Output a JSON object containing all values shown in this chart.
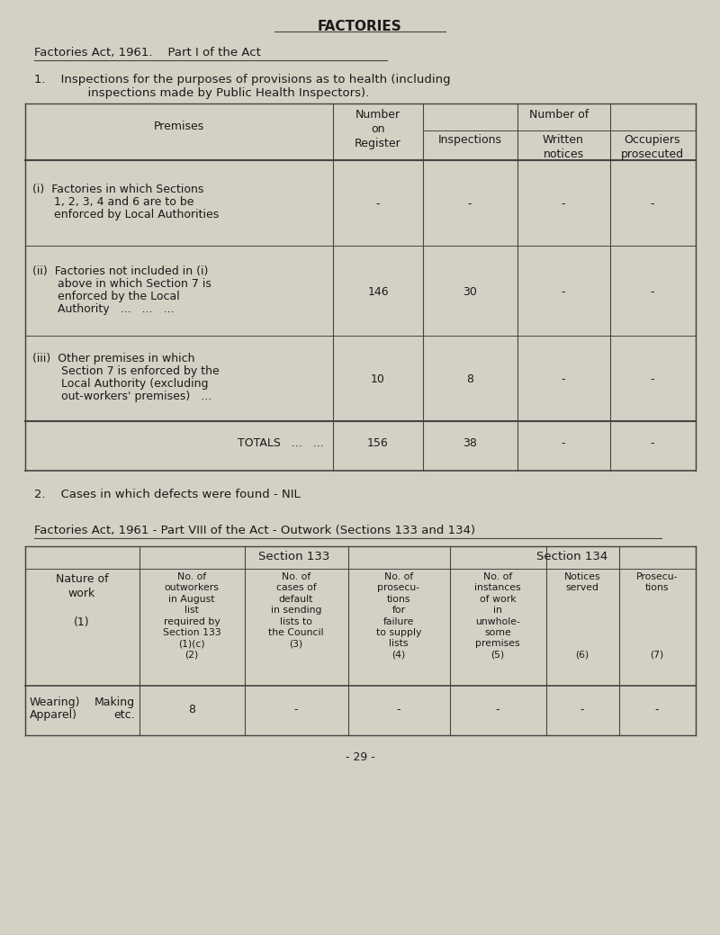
{
  "bg_color": "#d5d0c4",
  "text_color": "#1a1a1a",
  "title": "FACTORIES",
  "subtitle": "Factories Act, 1961.    Part I of the Act",
  "intro_line1": "1.    Inspections for the purposes of provisions as to health (including",
  "intro_line2": "              inspections made by Public Health Inspectors).",
  "table1_rows": [
    {
      "label_lines": [
        "(i)  Factories in which Sections",
        "      1, 2, 3, 4 and 6 are to be",
        "      enforced by Local Authorities"
      ],
      "col1": "-",
      "col2": "-",
      "col3": "-",
      "col4": "-"
    },
    {
      "label_lines": [
        "(ii)  Factories not included in (i)",
        "       above in which Section 7 is",
        "       enforced by the Local",
        "       Authority   ...   ...   ..."
      ],
      "col1": "146",
      "col2": "30",
      "col3": "-",
      "col4": "-"
    },
    {
      "label_lines": [
        "(iii)  Other premises in which",
        "        Section 7 is enforced by the",
        "        Local Authority (excluding",
        "        out-workers' premises)   ..."
      ],
      "col1": "10",
      "col2": "8",
      "col3": "-",
      "col4": "-"
    }
  ],
  "table1_totals_label": "TOTALS   ...   ...",
  "table1_totals": [
    "156",
    "38",
    "-",
    "-"
  ],
  "note2": "2.    Cases in which defects were found - NIL",
  "subtitle2": "Factories Act, 1961 - Part VIII of the Act - Outwork (Sections 133 and 134)",
  "table2_col_headers": [
    "No. of\noutworkers\nin August\nlist\nrequired by\nSection 133\n(1)(c)\n(2)",
    "No. of\ncases of\ndefault\nin sending\nlists to\nthe Council\n(3)",
    "No. of\nprosecu-\ntions\nfor\nfailure\nto supply\nlists\n(4)",
    "No. of\ninstances\nof work\nin\nunwhole-\nsome\npremises\n(5)",
    "Notices\nserved\n\n\n\n\n\n(6)",
    "Prosecu-\ntions\n\n\n\n\n\n(7)"
  ],
  "table2_nature_col": "Nature of\nwork\n\n(1)",
  "table2_row_label_left": [
    "Wearing)",
    "Apparel)"
  ],
  "table2_row_label_right": [
    "Making",
    "etc."
  ],
  "table2_row_vals": [
    "8",
    "-",
    "-",
    "-",
    "-",
    "-"
  ],
  "footer": "- 29 -"
}
